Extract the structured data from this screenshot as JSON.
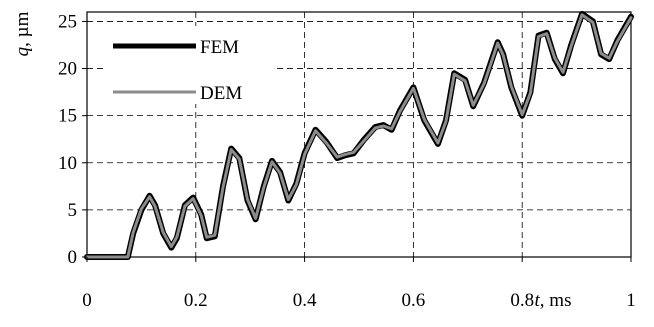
{
  "chart_data": {
    "type": "line",
    "title": "",
    "xlabel": "t",
    "xlabel_unit": ", ms",
    "ylabel": "q",
    "ylabel_unit": ", µm",
    "xlim": [
      0,
      1
    ],
    "ylim": [
      0,
      26
    ],
    "x_ticks": [
      0,
      0.2,
      0.4,
      0.6,
      0.8,
      1
    ],
    "x_tick_labels": [
      "0",
      "0.2",
      "0.4",
      "0.6",
      "0.8",
      "1"
    ],
    "y_ticks": [
      0,
      5,
      10,
      15,
      20,
      25
    ],
    "y_tick_labels": [
      "0",
      "5",
      "10",
      "15",
      "20",
      "25"
    ],
    "grid": true,
    "legend_position": "top-left",
    "series": [
      {
        "name": "FEM",
        "color": "#000000",
        "x": [
          0,
          0.02,
          0.04,
          0.06,
          0.075,
          0.085,
          0.1,
          0.115,
          0.125,
          0.14,
          0.155,
          0.165,
          0.18,
          0.195,
          0.21,
          0.22,
          0.235,
          0.25,
          0.265,
          0.28,
          0.295,
          0.31,
          0.325,
          0.34,
          0.355,
          0.37,
          0.385,
          0.4,
          0.42,
          0.44,
          0.46,
          0.475,
          0.49,
          0.51,
          0.53,
          0.545,
          0.56,
          0.575,
          0.6,
          0.62,
          0.645,
          0.66,
          0.675,
          0.695,
          0.71,
          0.73,
          0.755,
          0.765,
          0.78,
          0.8,
          0.815,
          0.83,
          0.845,
          0.86,
          0.875,
          0.89,
          0.91,
          0.93,
          0.945,
          0.96,
          0.975,
          1
        ],
        "values": [
          0,
          0,
          0,
          0,
          0,
          2.5,
          5,
          6.5,
          5.5,
          2.5,
          1,
          2,
          5.5,
          6.3,
          4.5,
          2,
          2.2,
          7.5,
          11.5,
          10.5,
          6,
          4,
          7.5,
          10.2,
          9,
          6,
          7.8,
          11,
          13.5,
          12.2,
          10.5,
          10.8,
          11,
          12.5,
          13.8,
          14,
          13.5,
          15.5,
          18,
          14.5,
          12,
          14.5,
          19.5,
          18.8,
          16,
          18.5,
          22.8,
          21.5,
          18,
          15,
          17.5,
          23.5,
          23.8,
          21,
          19.5,
          22.5,
          25.8,
          25,
          21.5,
          21,
          23,
          25.5
        ]
      },
      {
        "name": "DEM",
        "color": "#8c8c8c",
        "x": [
          0,
          0.02,
          0.04,
          0.06,
          0.075,
          0.085,
          0.1,
          0.115,
          0.125,
          0.14,
          0.155,
          0.165,
          0.18,
          0.195,
          0.21,
          0.22,
          0.235,
          0.25,
          0.265,
          0.28,
          0.295,
          0.31,
          0.325,
          0.34,
          0.355,
          0.37,
          0.385,
          0.4,
          0.42,
          0.44,
          0.46,
          0.475,
          0.49,
          0.51,
          0.53,
          0.545,
          0.56,
          0.575,
          0.6,
          0.62,
          0.645,
          0.66,
          0.675,
          0.695,
          0.71,
          0.73,
          0.755,
          0.765,
          0.78,
          0.8,
          0.815,
          0.83,
          0.845,
          0.86,
          0.875,
          0.89,
          0.91,
          0.93,
          0.945,
          0.96,
          0.975,
          1
        ],
        "values": [
          0,
          0,
          0,
          0,
          0,
          2.6,
          5.1,
          6.4,
          5.4,
          2.6,
          1.1,
          2.1,
          5.4,
          6.2,
          4.4,
          2.1,
          2.3,
          7.4,
          11.4,
          10.4,
          6.1,
          4.1,
          7.4,
          10.1,
          8.9,
          6.1,
          7.7,
          10.9,
          13.4,
          12.1,
          10.6,
          10.9,
          11.1,
          12.4,
          13.7,
          13.9,
          13.6,
          15.4,
          17.9,
          14.6,
          12.1,
          14.4,
          19.4,
          18.7,
          16.1,
          18.4,
          22.7,
          21.4,
          18.1,
          15.1,
          17.4,
          23.4,
          23.7,
          21.1,
          19.6,
          22.4,
          25.7,
          24.9,
          21.6,
          21.1,
          22.9,
          25.4
        ]
      }
    ]
  }
}
